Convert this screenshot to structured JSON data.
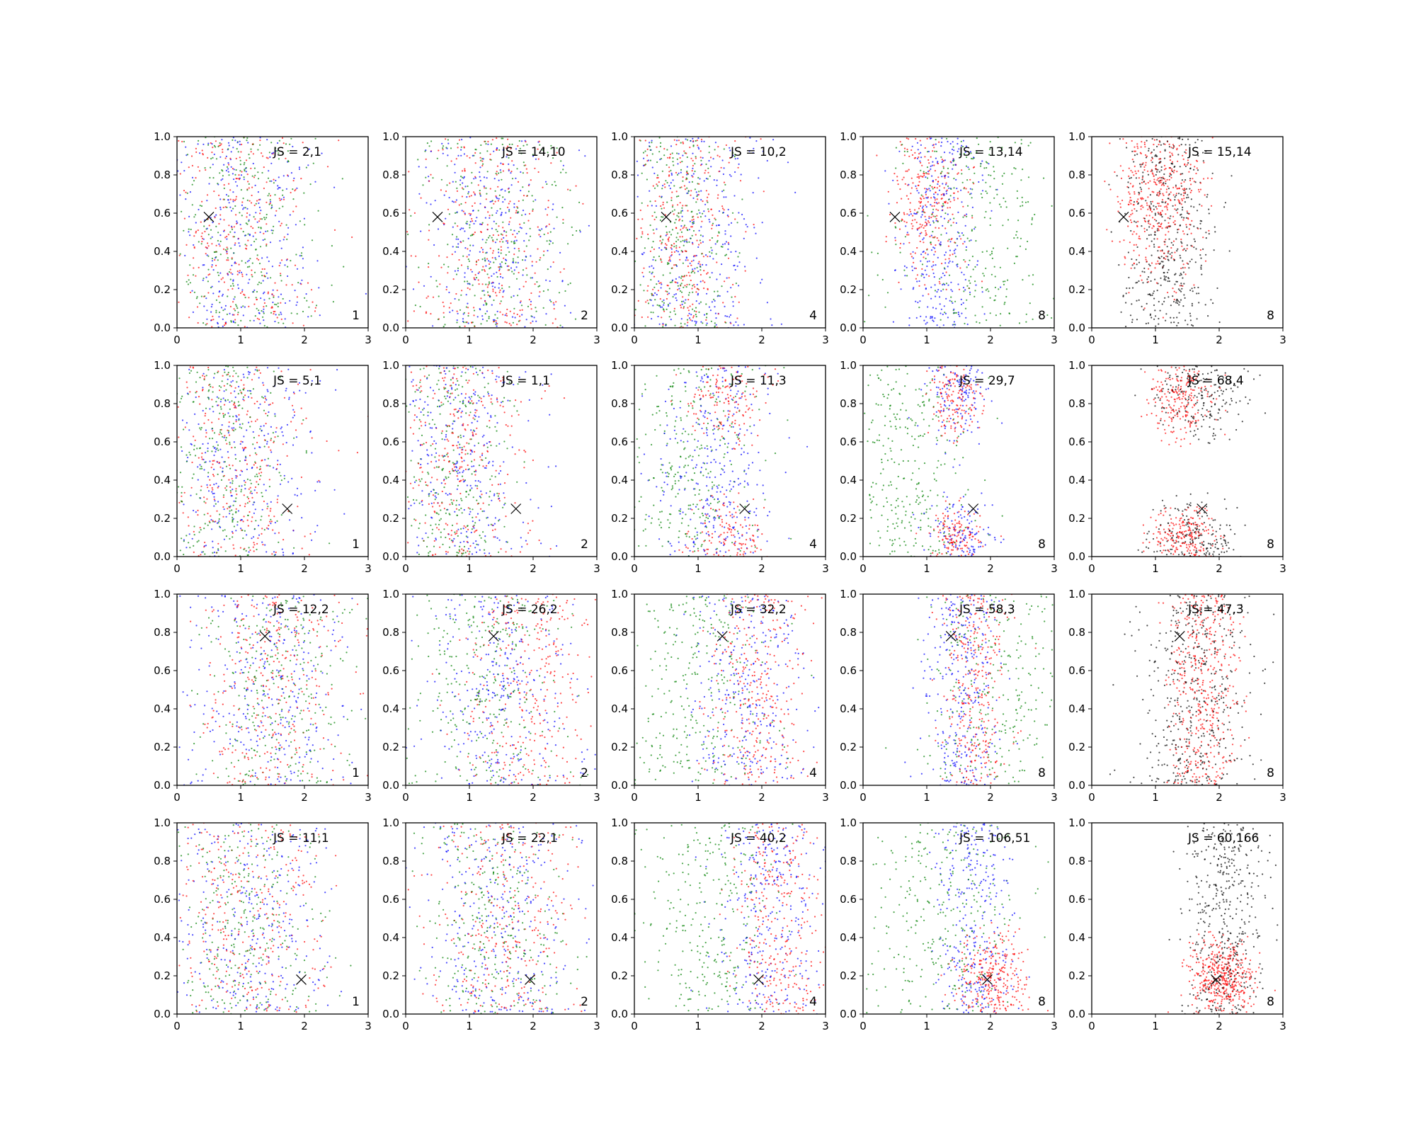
{
  "chart_data": {
    "type": "scatter",
    "grid": false,
    "xlim": [
      0,
      3
    ],
    "ylim": [
      0,
      1
    ],
    "xticks": [
      "0",
      "1",
      "2",
      "3"
    ],
    "yticks": [
      "0.0",
      "0.2",
      "0.4",
      "0.6",
      "0.8",
      "1.0"
    ],
    "colors": {
      "red": "#ff0000",
      "blue": "#0000ff",
      "green": "#008000",
      "black": "#000000"
    },
    "target_marker": "x",
    "rows": [
      {
        "target": [
          0.5,
          0.58
        ],
        "panels": [
          {
            "js_label": "JS = 2,1",
            "n_label": "1",
            "dist": {
              "red": [
                [
                  0.95,
                  0.6,
                  0.0,
                  0.0
                ]
              ],
              "blue": [
                [
                  1.0,
                  0.6,
                  0.0,
                  0.0
                ]
              ],
              "green": [
                [
                  1.0,
                  0.6,
                  0.0,
                  0.0
                ]
              ]
            }
          },
          {
            "js_label": "JS = 14,10",
            "n_label": "2",
            "dist": {
              "red": [
                [
                  1.35,
                  0.6,
                  0.0,
                  0.0
                ]
              ],
              "blue": [
                [
                  1.25,
                  0.65,
                  0.0,
                  0.0
                ]
              ],
              "green": [
                [
                  1.4,
                  0.6,
                  0.0,
                  0.0
                ]
              ]
            }
          },
          {
            "js_label": "JS = 10,2",
            "n_label": "4",
            "dist": {
              "red": [
                [
                  0.8,
                  0.45,
                  0.0,
                  0.0
                ]
              ],
              "blue": [
                [
                  0.95,
                  0.6,
                  0.0,
                  0.0
                ]
              ],
              "green": [
                [
                  0.7,
                  0.4,
                  0.0,
                  0.0
                ]
              ]
            }
          },
          {
            "js_label": "JS = 13,14",
            "n_label": "8",
            "dist": {
              "red": [
                [
                  1.05,
                  0.3,
                  0.7,
                  0.22
                ]
              ],
              "blue": [
                [
                  1.2,
                  0.3,
                  0.0,
                  0.0
                ]
              ],
              "green": [
                [
                  1.7,
                  0.65,
                  0.0,
                  0.0
                ]
              ]
            }
          },
          {
            "js_label": "JS = 15,14",
            "n_label": "8",
            "dist": {
              "red": [
                [
                  1.05,
                  0.35,
                  0.7,
                  0.22
                ]
              ],
              "black": [
                [
                  1.2,
                  0.35,
                  0.0,
                  0.0
                ]
              ]
            }
          }
        ]
      },
      {
        "target": [
          1.73,
          0.25
        ],
        "panels": [
          {
            "js_label": "JS = 5,1",
            "n_label": "1",
            "dist": {
              "red": [
                [
                  0.85,
                  0.6,
                  0.0,
                  0.0
                ]
              ],
              "blue": [
                [
                  0.95,
                  0.65,
                  0.0,
                  0.0
                ]
              ],
              "green": [
                [
                  0.8,
                  0.5,
                  0.0,
                  0.0
                ]
              ]
            }
          },
          {
            "js_label": "JS = 1,1",
            "n_label": "2",
            "dist": {
              "red": [
                [
                  0.85,
                  0.55,
                  0.0,
                  0.0
                ]
              ],
              "blue": [
                [
                  0.85,
                  0.55,
                  0.0,
                  0.0
                ]
              ],
              "green": [
                [
                  0.75,
                  0.45,
                  0.0,
                  0.0
                ]
              ]
            }
          },
          {
            "js_label": "JS = 11,3",
            "n_label": "4",
            "dist": {
              "red": [
                [
                  1.45,
                  0.3,
                  0.82,
                  0.12
                ],
                [
                  1.45,
                  0.3,
                  0.08,
                  0.1
                ]
              ],
              "blue": [
                [
                  1.3,
                  0.45,
                  0.0,
                  0.0
                ]
              ],
              "green": [
                [
                  0.9,
                  0.55,
                  0.0,
                  0.0
                ]
              ]
            }
          },
          {
            "js_label": "JS = 29,7",
            "n_label": "8",
            "dist": {
              "red": [
                [
                  1.45,
                  0.2,
                  0.82,
                  0.1
                ],
                [
                  1.45,
                  0.2,
                  0.1,
                  0.08
                ]
              ],
              "blue": [
                [
                  1.5,
                  0.25,
                  0.85,
                  0.13
                ],
                [
                  1.55,
                  0.25,
                  0.1,
                  0.1
                ]
              ],
              "green": [
                [
                  0.75,
                  0.45,
                  0.0,
                  0.0
                ]
              ]
            }
          },
          {
            "js_label": "JS = 68,4",
            "n_label": "8",
            "dist": {
              "red": [
                [
                  1.4,
                  0.25,
                  0.82,
                  0.1
                ],
                [
                  1.45,
                  0.25,
                  0.1,
                  0.08
                ]
              ],
              "black": [
                [
                  1.7,
                  0.35,
                  0.85,
                  0.12
                ],
                [
                  1.6,
                  0.35,
                  0.08,
                  0.1
                ]
              ]
            }
          }
        ]
      },
      {
        "target": [
          1.38,
          0.78
        ],
        "panels": [
          {
            "js_label": "JS = 12,2",
            "n_label": "1",
            "dist": {
              "red": [
                [
                  1.5,
                  0.6,
                  0.0,
                  0.0
                ]
              ],
              "blue": [
                [
                  1.4,
                  0.65,
                  0.0,
                  0.0
                ]
              ],
              "green": [
                [
                  1.55,
                  0.6,
                  0.0,
                  0.0
                ]
              ]
            }
          },
          {
            "js_label": "JS = 26,2",
            "n_label": "2",
            "dist": {
              "red": [
                [
                  1.95,
                  0.55,
                  0.0,
                  0.0
                ]
              ],
              "blue": [
                [
                  1.5,
                  0.65,
                  0.0,
                  0.0
                ]
              ],
              "green": [
                [
                  1.2,
                  0.6,
                  0.0,
                  0.0
                ]
              ]
            }
          },
          {
            "js_label": "JS = 32,2",
            "n_label": "4",
            "dist": {
              "red": [
                [
                  1.95,
                  0.4,
                  0.0,
                  0.0
                ]
              ],
              "blue": [
                [
                  1.75,
                  0.45,
                  0.0,
                  0.0
                ]
              ],
              "green": [
                [
                  0.9,
                  0.6,
                  0.0,
                  0.0
                ]
              ]
            }
          },
          {
            "js_label": "JS = 58,3",
            "n_label": "8",
            "dist": {
              "red": [
                [
                  1.75,
                  0.25,
                  0.0,
                  0.0
                ]
              ],
              "blue": [
                [
                  1.55,
                  0.3,
                  0.0,
                  0.0
                ]
              ],
              "green": [
                [
                  2.2,
                  0.6,
                  0.0,
                  0.0
                ]
              ]
            }
          },
          {
            "js_label": "JS = 47,3",
            "n_label": "8",
            "dist": {
              "red": [
                [
                  1.75,
                  0.25,
                  0.0,
                  0.0
                ]
              ],
              "black": [
                [
                  1.6,
                  0.45,
                  0.0,
                  0.0
                ]
              ]
            }
          }
        ]
      },
      {
        "target": [
          1.95,
          0.18
        ],
        "panels": [
          {
            "js_label": "JS = 11,1",
            "n_label": "1",
            "dist": {
              "red": [
                [
                  1.15,
                  0.6,
                  0.0,
                  0.0
                ]
              ],
              "blue": [
                [
                  1.1,
                  0.6,
                  0.0,
                  0.0
                ]
              ],
              "green": [
                [
                  1.05,
                  0.6,
                  0.0,
                  0.0
                ]
              ]
            }
          },
          {
            "js_label": "JS = 22,1",
            "n_label": "2",
            "dist": {
              "red": [
                [
                  1.55,
                  0.6,
                  0.0,
                  0.0
                ]
              ],
              "blue": [
                [
                  1.45,
                  0.6,
                  0.0,
                  0.0
                ]
              ],
              "green": [
                [
                  1.35,
                  0.6,
                  0.0,
                  0.0
                ]
              ]
            }
          },
          {
            "js_label": "JS = 40,2",
            "n_label": "4",
            "dist": {
              "red": [
                [
                  2.3,
                  0.35,
                  0.0,
                  0.0
                ]
              ],
              "blue": [
                [
                  2.1,
                  0.4,
                  0.0,
                  0.0
                ]
              ],
              "green": [
                [
                  1.1,
                  0.6,
                  0.0,
                  0.0
                ]
              ]
            }
          },
          {
            "js_label": "JS = 106,51",
            "n_label": "8",
            "dist": {
              "red": [
                [
                  2.05,
                  0.28,
                  0.18,
                  0.12
                ]
              ],
              "blue": [
                [
                  1.75,
                  0.3,
                  0.0,
                  0.0
                ]
              ],
              "green": [
                [
                  1.2,
                  0.6,
                  0.0,
                  0.0
                ]
              ]
            }
          },
          {
            "js_label": "JS = 60,166",
            "n_label": "8",
            "dist": {
              "red": [
                [
                  2.05,
                  0.25,
                  0.18,
                  0.1
                ]
              ],
              "black": [
                [
                  2.1,
                  0.3,
                  0.0,
                  0.0
                ]
              ]
            }
          }
        ]
      }
    ]
  }
}
